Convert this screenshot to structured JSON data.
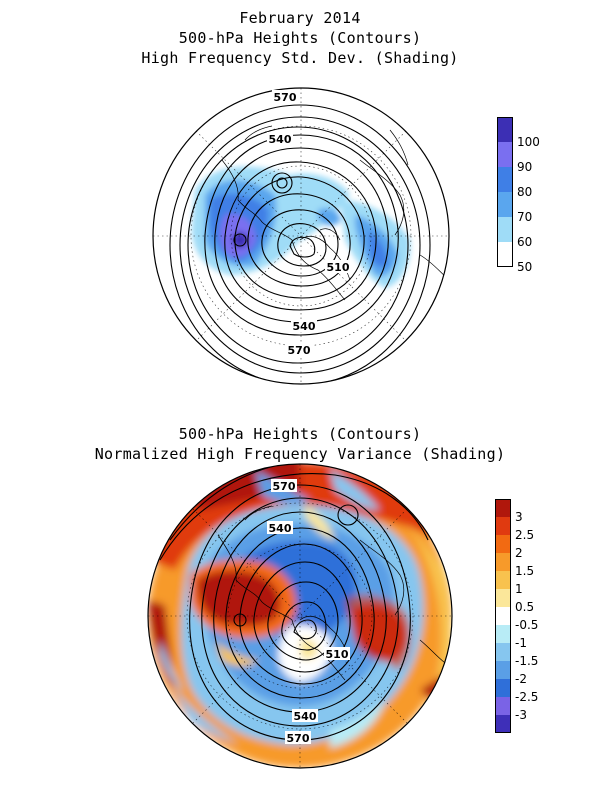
{
  "top_panel": {
    "title_line1": "February 2014",
    "title_line2": "500-hPa Heights (Contours)",
    "title_line3": "High Frequency Std. Dev. (Shading)",
    "contour_labels": [
      "570",
      "540",
      "510",
      "540",
      "570"
    ],
    "legend": {
      "labels": [
        "100",
        "90",
        "80",
        "70",
        "60",
        "50"
      ],
      "colors": [
        "#3c2fb4",
        "#7a6ff0",
        "#3f7fe6",
        "#5aa6ee",
        "#9fdcf7",
        "#ffffff"
      ]
    }
  },
  "bottom_panel": {
    "title_line1": "500-hPa Heights (Contours)",
    "title_line2": "Normalized High Frequency Variance (Shading)",
    "contour_labels": [
      "570",
      "540",
      "510",
      "540",
      "570"
    ],
    "legend": {
      "labels": [
        "3",
        "2.5",
        "2",
        "1.5",
        "1",
        "0.5",
        "-0.5",
        "-1",
        "-1.5",
        "-2",
        "-2.5",
        "-3"
      ],
      "colors": [
        "#b0170c",
        "#e03a10",
        "#f26a12",
        "#f79a2a",
        "#f8c24e",
        "#fbe79a",
        "#ffffff",
        "#b8ecf6",
        "#86c6ef",
        "#5a9fe6",
        "#2f6fd9",
        "#7a63e6",
        "#3e2fb8"
      ]
    }
  }
}
